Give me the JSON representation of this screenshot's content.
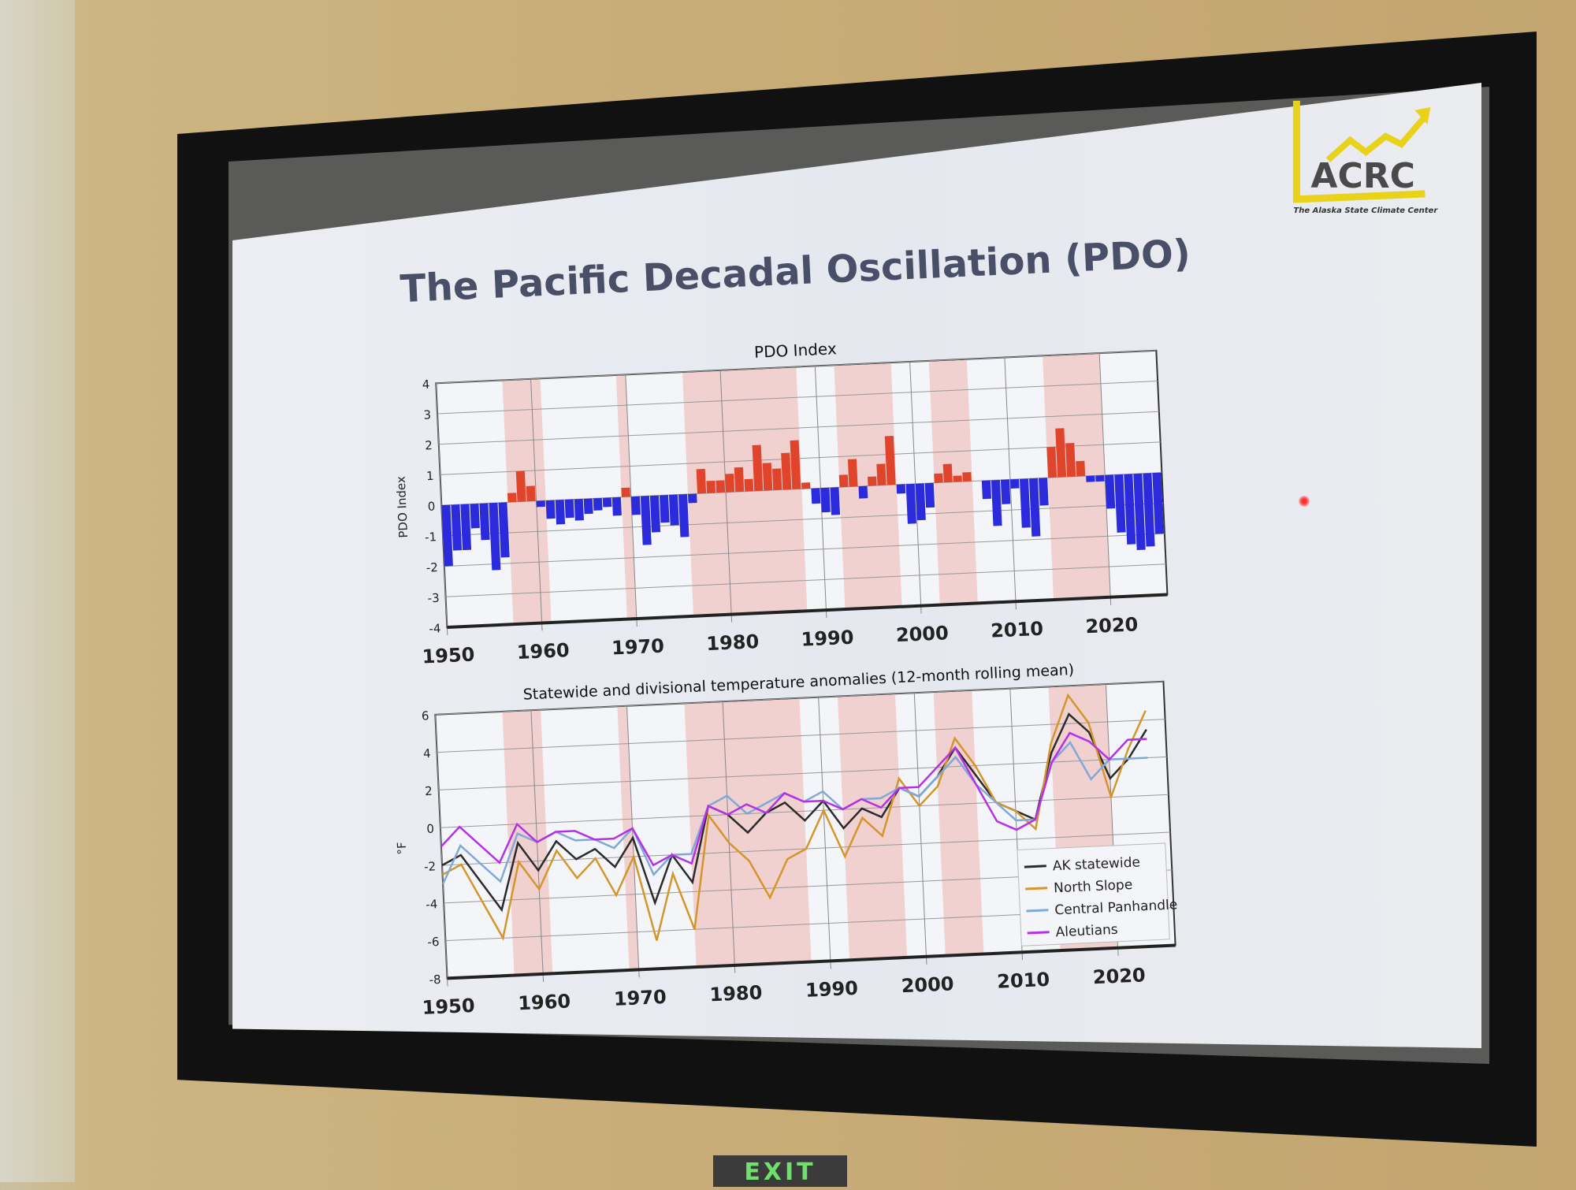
{
  "slide": {
    "title": "The Pacific Decadal Oscillation (PDO)",
    "logo": {
      "text": "ACRC",
      "tagline": "The Alaska State Climate Center",
      "color": "#e8d21a"
    }
  },
  "exit_sign": "EXIT",
  "chart_data": [
    {
      "type": "bar",
      "title": "PDO Index",
      "ylabel": "PDO Index",
      "xlabel": "",
      "xlim": [
        1950,
        2026
      ],
      "ylim": [
        -4,
        4
      ],
      "xticks": [
        "1950",
        "1960",
        "1970",
        "1980",
        "1990",
        "2000",
        "2010",
        "2020"
      ],
      "yticks": [
        "-4",
        "-3",
        "-2",
        "-1",
        "0",
        "1",
        "2",
        "3",
        "4"
      ],
      "grid": true,
      "positive_color": "#e0452c",
      "negative_color": "#2b2bdc",
      "shaded_periods": [
        [
          1957,
          1961
        ],
        [
          1969,
          1970
        ],
        [
          1976,
          1988
        ],
        [
          1992,
          1998
        ],
        [
          2002,
          2006
        ],
        [
          2014,
          2020
        ]
      ],
      "shade_color": "#f0c9c9",
      "x": [
        1950,
        1951,
        1952,
        1953,
        1954,
        1955,
        1956,
        1957,
        1958,
        1959,
        1960,
        1961,
        1962,
        1963,
        1964,
        1965,
        1966,
        1967,
        1968,
        1969,
        1970,
        1971,
        1972,
        1973,
        1974,
        1975,
        1976,
        1977,
        1978,
        1979,
        1980,
        1981,
        1982,
        1983,
        1984,
        1985,
        1986,
        1987,
        1988,
        1989,
        1990,
        1991,
        1992,
        1993,
        1994,
        1995,
        1996,
        1997,
        1998,
        1999,
        2000,
        2001,
        2002,
        2003,
        2004,
        2005,
        2006,
        2007,
        2008,
        2009,
        2010,
        2011,
        2012,
        2013,
        2014,
        2015,
        2016,
        2017,
        2018,
        2019,
        2020,
        2021,
        2022,
        2023,
        2024,
        2025
      ],
      "values": [
        -2.0,
        -1.5,
        -1.5,
        -0.8,
        -1.2,
        -2.2,
        -1.8,
        0.3,
        1.0,
        0.5,
        -0.2,
        -0.6,
        -0.8,
        -0.6,
        -0.7,
        -0.5,
        -0.4,
        -0.3,
        -0.6,
        0.3,
        -0.6,
        -1.6,
        -1.2,
        -0.9,
        -1.0,
        -1.4,
        -0.3,
        0.8,
        0.4,
        0.4,
        0.6,
        0.8,
        0.4,
        1.5,
        0.9,
        0.7,
        1.2,
        1.6,
        0.2,
        -0.5,
        -0.8,
        -0.9,
        0.4,
        0.9,
        -0.4,
        0.3,
        0.7,
        1.6,
        -0.3,
        -1.3,
        -1.2,
        -0.8,
        0.3,
        0.6,
        0.2,
        0.3,
        0.0,
        -0.6,
        -1.5,
        -0.8,
        -0.3,
        -1.6,
        -1.9,
        -0.9,
        1.0,
        1.6,
        1.1,
        0.5,
        -0.2,
        -0.2,
        -1.1,
        -1.9,
        -2.3,
        -2.5,
        -2.4,
        -2.0
      ]
    },
    {
      "type": "line",
      "title": "Statewide and divisional temperature anomalies (12-month rolling mean)",
      "ylabel": "°F",
      "xlabel": "",
      "xlim": [
        1950,
        2026
      ],
      "ylim": [
        -8,
        6
      ],
      "xticks": [
        "1950",
        "1960",
        "1970",
        "1980",
        "1990",
        "2000",
        "2010",
        "2020"
      ],
      "yticks": [
        "-8",
        "-6",
        "-4",
        "-2",
        "0",
        "2",
        "4",
        "6"
      ],
      "grid": true,
      "legend_position": "bottom-right",
      "x": [
        1950,
        1952,
        1954,
        1956,
        1958,
        1960,
        1962,
        1964,
        1966,
        1968,
        1970,
        1972,
        1974,
        1976,
        1978,
        1980,
        1982,
        1984,
        1986,
        1988,
        1990,
        1992,
        1994,
        1996,
        1998,
        2000,
        2002,
        2004,
        2006,
        2008,
        2010,
        2012,
        2014,
        2016,
        2018,
        2020,
        2022,
        2024
      ],
      "series": [
        {
          "name": "AK statewide",
          "color": "#2b2b2b",
          "values": [
            -2.0,
            -1.5,
            -3.0,
            -4.5,
            -1.0,
            -2.5,
            -1.0,
            -2.0,
            -1.5,
            -2.5,
            -1.0,
            -4.5,
            -2.0,
            -3.5,
            0.5,
            0.0,
            -1.0,
            0.0,
            0.5,
            -0.5,
            0.5,
            -1.0,
            0.0,
            -0.5,
            1.0,
            0.5,
            1.5,
            3.0,
            1.5,
            0.0,
            -0.5,
            -1.0,
            2.5,
            4.5,
            3.5,
            1.0,
            2.0,
            3.5
          ]
        },
        {
          "name": "North Slope",
          "color": "#d4962a",
          "values": [
            -2.5,
            -2.0,
            -4.0,
            -6.0,
            -2.0,
            -3.5,
            -1.5,
            -3.0,
            -2.0,
            -4.0,
            -2.0,
            -6.5,
            -3.0,
            -6.0,
            0.0,
            -1.5,
            -2.5,
            -4.5,
            -2.5,
            -2.0,
            0.0,
            -2.5,
            -0.5,
            -1.5,
            1.5,
            0.0,
            1.0,
            3.5,
            2.0,
            0.0,
            -0.5,
            -1.5,
            3.0,
            5.5,
            4.0,
            0.0,
            2.5,
            4.5
          ]
        },
        {
          "name": "Central Panhandle",
          "color": "#7fa9d8",
          "values": [
            -3.0,
            -1.0,
            -2.0,
            -3.0,
            -0.5,
            -1.0,
            -0.5,
            -1.0,
            -1.0,
            -1.5,
            -0.5,
            -3.0,
            -2.0,
            -2.0,
            0.5,
            1.0,
            0.0,
            0.5,
            1.0,
            0.5,
            1.0,
            0.0,
            0.5,
            0.5,
            1.0,
            0.5,
            1.5,
            2.5,
            1.0,
            0.0,
            -1.0,
            -1.0,
            2.0,
            3.0,
            1.0,
            2.0,
            2.0,
            2.0
          ]
        },
        {
          "name": "Aleutians",
          "color": "#b530e6",
          "values": [
            -1.0,
            0.0,
            -1.0,
            -2.0,
            0.0,
            -1.0,
            -0.5,
            -0.5,
            -1.0,
            -1.0,
            -0.5,
            -2.5,
            -2.0,
            -2.5,
            0.5,
            0.0,
            0.5,
            0.0,
            1.0,
            0.5,
            0.5,
            0.0,
            0.5,
            0.0,
            1.0,
            1.0,
            2.0,
            3.0,
            1.0,
            -1.0,
            -1.5,
            -1.0,
            2.0,
            3.5,
            3.0,
            2.0,
            3.0,
            3.0
          ]
        }
      ]
    }
  ]
}
